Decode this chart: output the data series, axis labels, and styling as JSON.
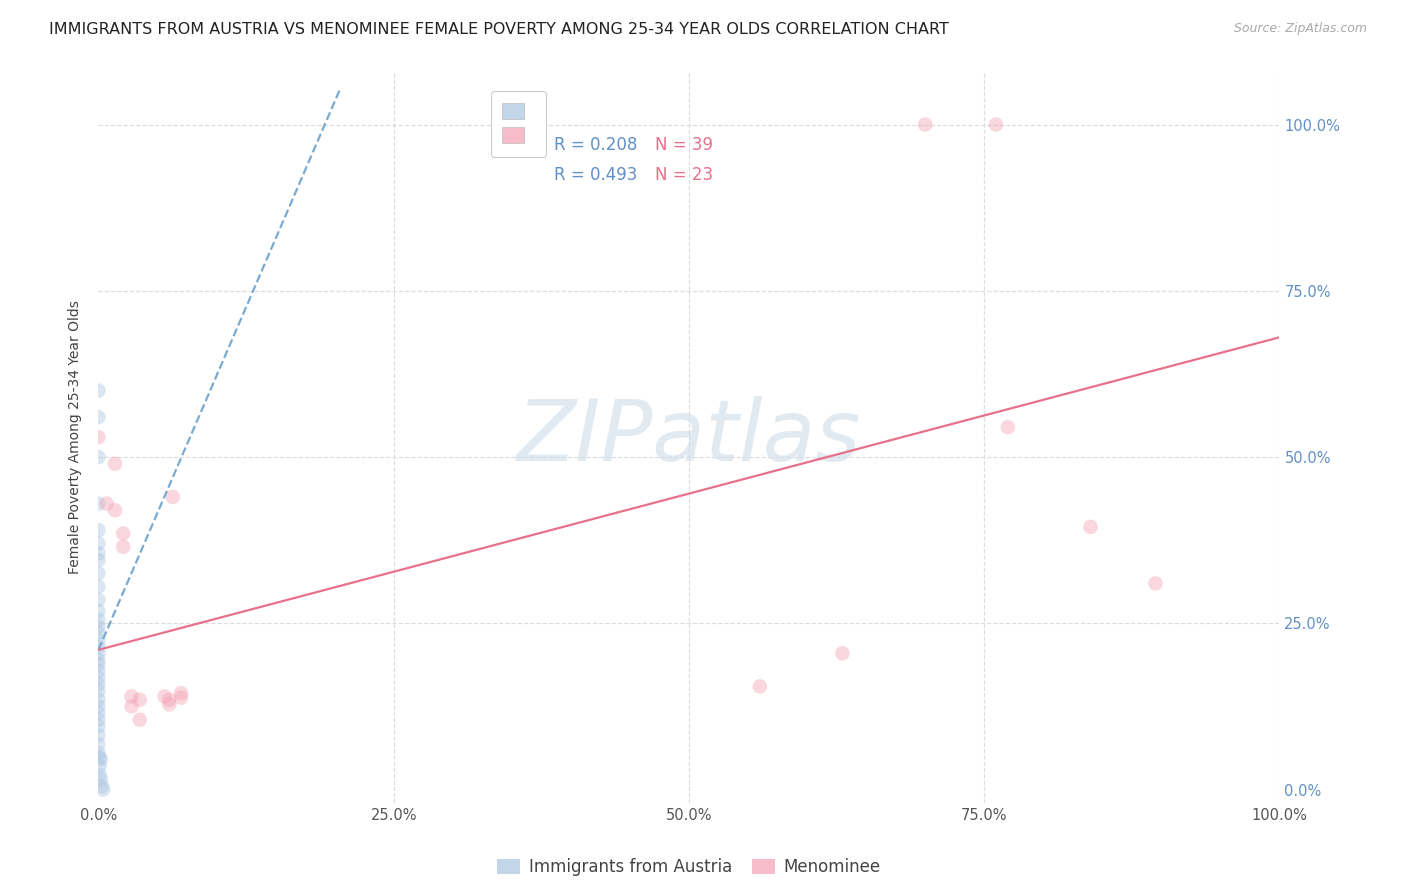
{
  "title": "IMMIGRANTS FROM AUSTRIA VS MENOMINEE FEMALE POVERTY AMONG 25-34 YEAR OLDS CORRELATION CHART",
  "source": "Source: ZipAtlas.com",
  "ylabel": "Female Poverty Among 25-34 Year Olds",
  "blue_scatter_x": [
    0.0,
    0.0,
    0.0,
    0.0,
    0.0,
    0.0,
    0.0,
    0.0,
    0.0,
    0.0,
    0.0,
    0.0,
    0.0,
    0.0,
    0.0,
    0.0,
    0.0,
    0.0,
    0.0,
    0.0,
    0.0,
    0.0,
    0.0,
    0.0,
    0.0,
    0.0,
    0.0,
    0.0,
    0.0,
    0.0,
    0.0,
    0.0,
    0.001,
    0.001,
    0.001,
    0.002,
    0.002,
    0.003,
    0.004
  ],
  "blue_scatter_y": [
    0.6,
    0.56,
    0.5,
    0.43,
    0.39,
    0.37,
    0.355,
    0.345,
    0.325,
    0.305,
    0.285,
    0.268,
    0.255,
    0.245,
    0.235,
    0.225,
    0.215,
    0.205,
    0.195,
    0.188,
    0.178,
    0.168,
    0.158,
    0.148,
    0.135,
    0.125,
    0.115,
    0.105,
    0.095,
    0.082,
    0.068,
    0.055,
    0.048,
    0.035,
    0.022,
    0.045,
    0.015,
    0.005,
    0.0
  ],
  "pink_scatter_x": [
    0.0,
    0.007,
    0.014,
    0.014,
    0.021,
    0.021,
    0.028,
    0.028,
    0.035,
    0.035,
    0.056,
    0.063,
    0.07,
    0.56,
    0.63,
    0.7,
    0.76,
    0.77,
    0.84,
    0.895,
    0.06,
    0.06,
    0.07
  ],
  "pink_scatter_y": [
    0.53,
    0.43,
    0.49,
    0.42,
    0.385,
    0.365,
    0.14,
    0.125,
    0.105,
    0.135,
    0.14,
    0.44,
    0.145,
    0.155,
    0.205,
    1.0,
    1.0,
    0.545,
    0.395,
    0.31,
    0.135,
    0.128,
    0.138
  ],
  "blue_trend_x": [
    0.0,
    0.205
  ],
  "blue_trend_y": [
    0.21,
    1.055
  ],
  "pink_trend_x": [
    0.0,
    1.0
  ],
  "pink_trend_y": [
    0.21,
    0.68
  ],
  "xlim": [
    0.0,
    1.0
  ],
  "ylim": [
    -0.02,
    1.08
  ],
  "xticks": [
    0.0,
    0.25,
    0.5,
    0.75,
    1.0
  ],
  "yticks": [
    0.0,
    0.25,
    0.5,
    0.75,
    1.0
  ],
  "xticklabels": [
    "0.0%",
    "25.0%",
    "50.0%",
    "75.0%",
    "100.0%"
  ],
  "yticklabels": [
    "0.0%",
    "25.0%",
    "50.0%",
    "75.0%",
    "100.0%"
  ],
  "scatter_size": 110,
  "alpha_scatter": 0.42,
  "blue_scatter_color": "#a8c4e0",
  "pink_scatter_color": "#f4a0b4",
  "blue_line_color": "#7aaad0",
  "pink_line_color": "#e8708a",
  "grid_color": "#dddddd",
  "right_tick_color": "#6090c8",
  "watermark_text": "ZIPatlas",
  "watermark_color": "#cddde8",
  "legend_r_color": "#6090c8",
  "legend_n_color": "#e8708a",
  "bottom_legend_blue": "Immigrants from Austria",
  "bottom_legend_pink": "Menominee",
  "title_fontsize": 11.5,
  "ylabel_fontsize": 10,
  "tick_fontsize": 10.5,
  "legend_fontsize": 12,
  "source_fontsize": 9
}
